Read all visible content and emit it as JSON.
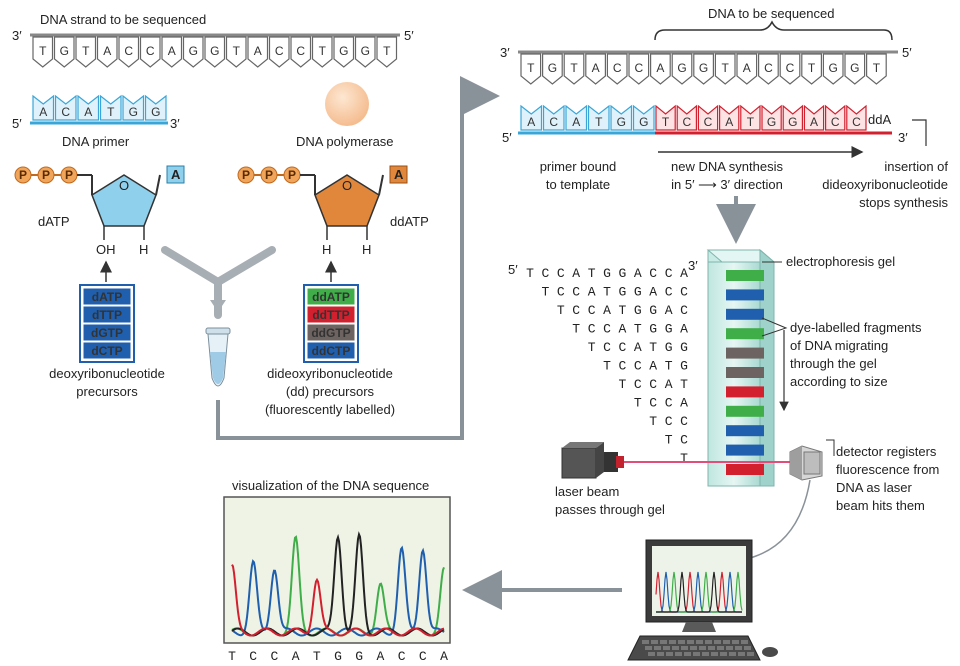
{
  "left": {
    "strand_title": "DNA strand to be sequenced",
    "strand_end_3": "3′",
    "strand_end_5": "5′",
    "template_bases": [
      "T",
      "G",
      "T",
      "A",
      "C",
      "C",
      "A",
      "G",
      "G",
      "T",
      "A",
      "C",
      "C",
      "T",
      "G",
      "G",
      "T"
    ],
    "primer_bases": [
      "A",
      "C",
      "A",
      "T",
      "G",
      "G"
    ],
    "primer_end_5": "5′",
    "primer_end_3": "3′",
    "primer_label": "DNA primer",
    "polymerase_label": "DNA polymerase",
    "datp": {
      "phosphate": "P",
      "base": "A",
      "ring_o": "O",
      "name": "dATP",
      "oh": "OH",
      "h": "H"
    },
    "ddatp": {
      "phosphate": "P",
      "base": "A",
      "ring_o": "O",
      "name": "ddATP",
      "h1": "H",
      "h2": "H"
    },
    "dntp_list": [
      "dATP",
      "dTTP",
      "dGTP",
      "dCTP"
    ],
    "ddntp_list": [
      "ddATP",
      "ddTTP",
      "ddGTP",
      "ddCTP"
    ],
    "dntp_label": [
      "deoxyribonucleotide",
      "precursors"
    ],
    "ddntp_label": [
      "dideoxyribonucleotide",
      "(dd) precursors",
      "(fluorescently labelled)"
    ]
  },
  "right": {
    "dna_title": "DNA to be sequenced",
    "end_3": "3′",
    "end_5": "5′",
    "template_bases": [
      "T",
      "G",
      "T",
      "A",
      "C",
      "C",
      "A",
      "G",
      "G",
      "T",
      "A",
      "C",
      "C",
      "T",
      "G",
      "G",
      "T"
    ],
    "primer_bases": [
      "A",
      "C",
      "A",
      "T",
      "G",
      "G"
    ],
    "new_bases": [
      "T",
      "C",
      "C",
      "A",
      "T",
      "G",
      "G",
      "A",
      "C",
      "C"
    ],
    "dda_label": "ddA",
    "bottom_5": "5′",
    "bottom_3": "3′",
    "primer_bound_label": [
      "primer bound",
      "to template"
    ],
    "synthesis_label": [
      "new DNA synthesis",
      "in 5′ ⟶ 3′ direction"
    ],
    "insertion_label": [
      "insertion of",
      "dideoxyribonucleotide",
      "stops synthesis"
    ]
  },
  "gel": {
    "fragments_5": "5′",
    "fragments_3": "3′",
    "fragments": [
      "TCCATGGACCA",
      "TCCATGGACC",
      "TCCATGGAC",
      "TCCATGGA",
      "TCCATGG",
      "TCCATG",
      "TCCAT",
      "TCCA",
      "TCC",
      "TC",
      "T"
    ],
    "band_colors": [
      "#3fae49",
      "#1f5fae",
      "#1f5fae",
      "#3fae49",
      "#6d6461",
      "#6d6461",
      "#d2202f",
      "#3fae49",
      "#1f5fae",
      "#1f5fae",
      "#d2202f"
    ],
    "gel_label": "electrophoresis gel",
    "fragment_label": [
      "dye-labelled fragments",
      "of DNA migrating",
      "through the gel",
      "according to size"
    ],
    "laser_label": [
      "laser beam",
      "passes through gel"
    ],
    "detector_label": [
      "detector registers",
      "fluorescence from",
      "DNA as laser",
      "beam hits them"
    ]
  },
  "chromatogram": {
    "title": "visualization of the DNA sequence",
    "sequence": [
      "T",
      "C",
      "C",
      "A",
      "T",
      "G",
      "G",
      "A",
      "C",
      "C",
      "A"
    ]
  },
  "colors": {
    "blue": "#3aa6d8",
    "red": "#d2202f",
    "green": "#3fae49",
    "orange": "#e0873c",
    "darkblue": "#1f5fae",
    "gray": "#6d6461",
    "arrow": "#8a9299"
  }
}
